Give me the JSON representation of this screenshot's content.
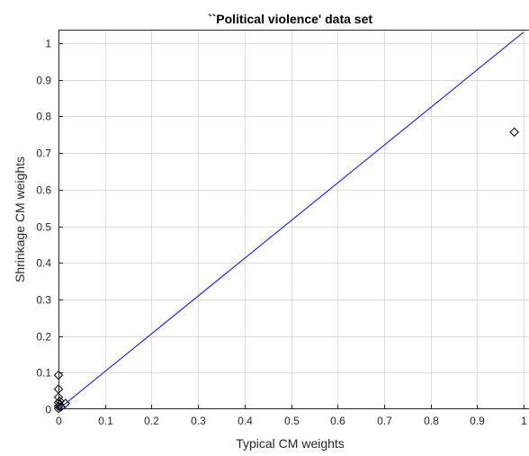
{
  "chart_data": {
    "type": "scatter",
    "title": "``Political violence' data set",
    "xlabel": "Typical CM weights",
    "ylabel": "Shrinkage CM weights",
    "xlim": [
      0,
      1
    ],
    "ylim": [
      0,
      1.03
    ],
    "xticks": [
      0,
      0.1,
      0.2,
      0.3,
      0.4,
      0.5,
      0.6,
      0.7,
      0.8,
      0.9,
      1
    ],
    "xtick_labels": [
      "0",
      "0.1",
      "0.2",
      "0.3",
      "0.4",
      "0.5",
      "0.6",
      "0.7",
      "0.8",
      "0.9",
      "1"
    ],
    "yticks": [
      0,
      0.1,
      0.2,
      0.3,
      0.4,
      0.5,
      0.6,
      0.7,
      0.8,
      0.9,
      1
    ],
    "ytick_labels": [
      "0",
      "0.1",
      "0.2",
      "0.3",
      "0.4",
      "0.5",
      "0.6",
      "0.7",
      "0.8",
      "0.9",
      "1"
    ],
    "grid": true,
    "series": [
      {
        "marker": "diamond",
        "color": "#000000",
        "points": [
          {
            "x": 0.0,
            "y": 0.093
          },
          {
            "x": 0.0,
            "y": 0.055
          },
          {
            "x": 0.0,
            "y": 0.033
          },
          {
            "x": 0.0,
            "y": 0.018
          },
          {
            "x": 0.0,
            "y": 0.008
          },
          {
            "x": 0.0,
            "y": 0.002
          },
          {
            "x": 0.003,
            "y": 0.012
          },
          {
            "x": 0.003,
            "y": 0.022
          },
          {
            "x": 0.005,
            "y": 0.006
          },
          {
            "x": 0.015,
            "y": 0.016
          },
          {
            "x": 0.98,
            "y": 0.757
          }
        ]
      },
      {
        "kind": "line",
        "color": "#0000ff",
        "points": [
          {
            "x": 0.0,
            "y": 0.0
          },
          {
            "x": 1.0,
            "y": 1.03
          }
        ]
      }
    ]
  }
}
